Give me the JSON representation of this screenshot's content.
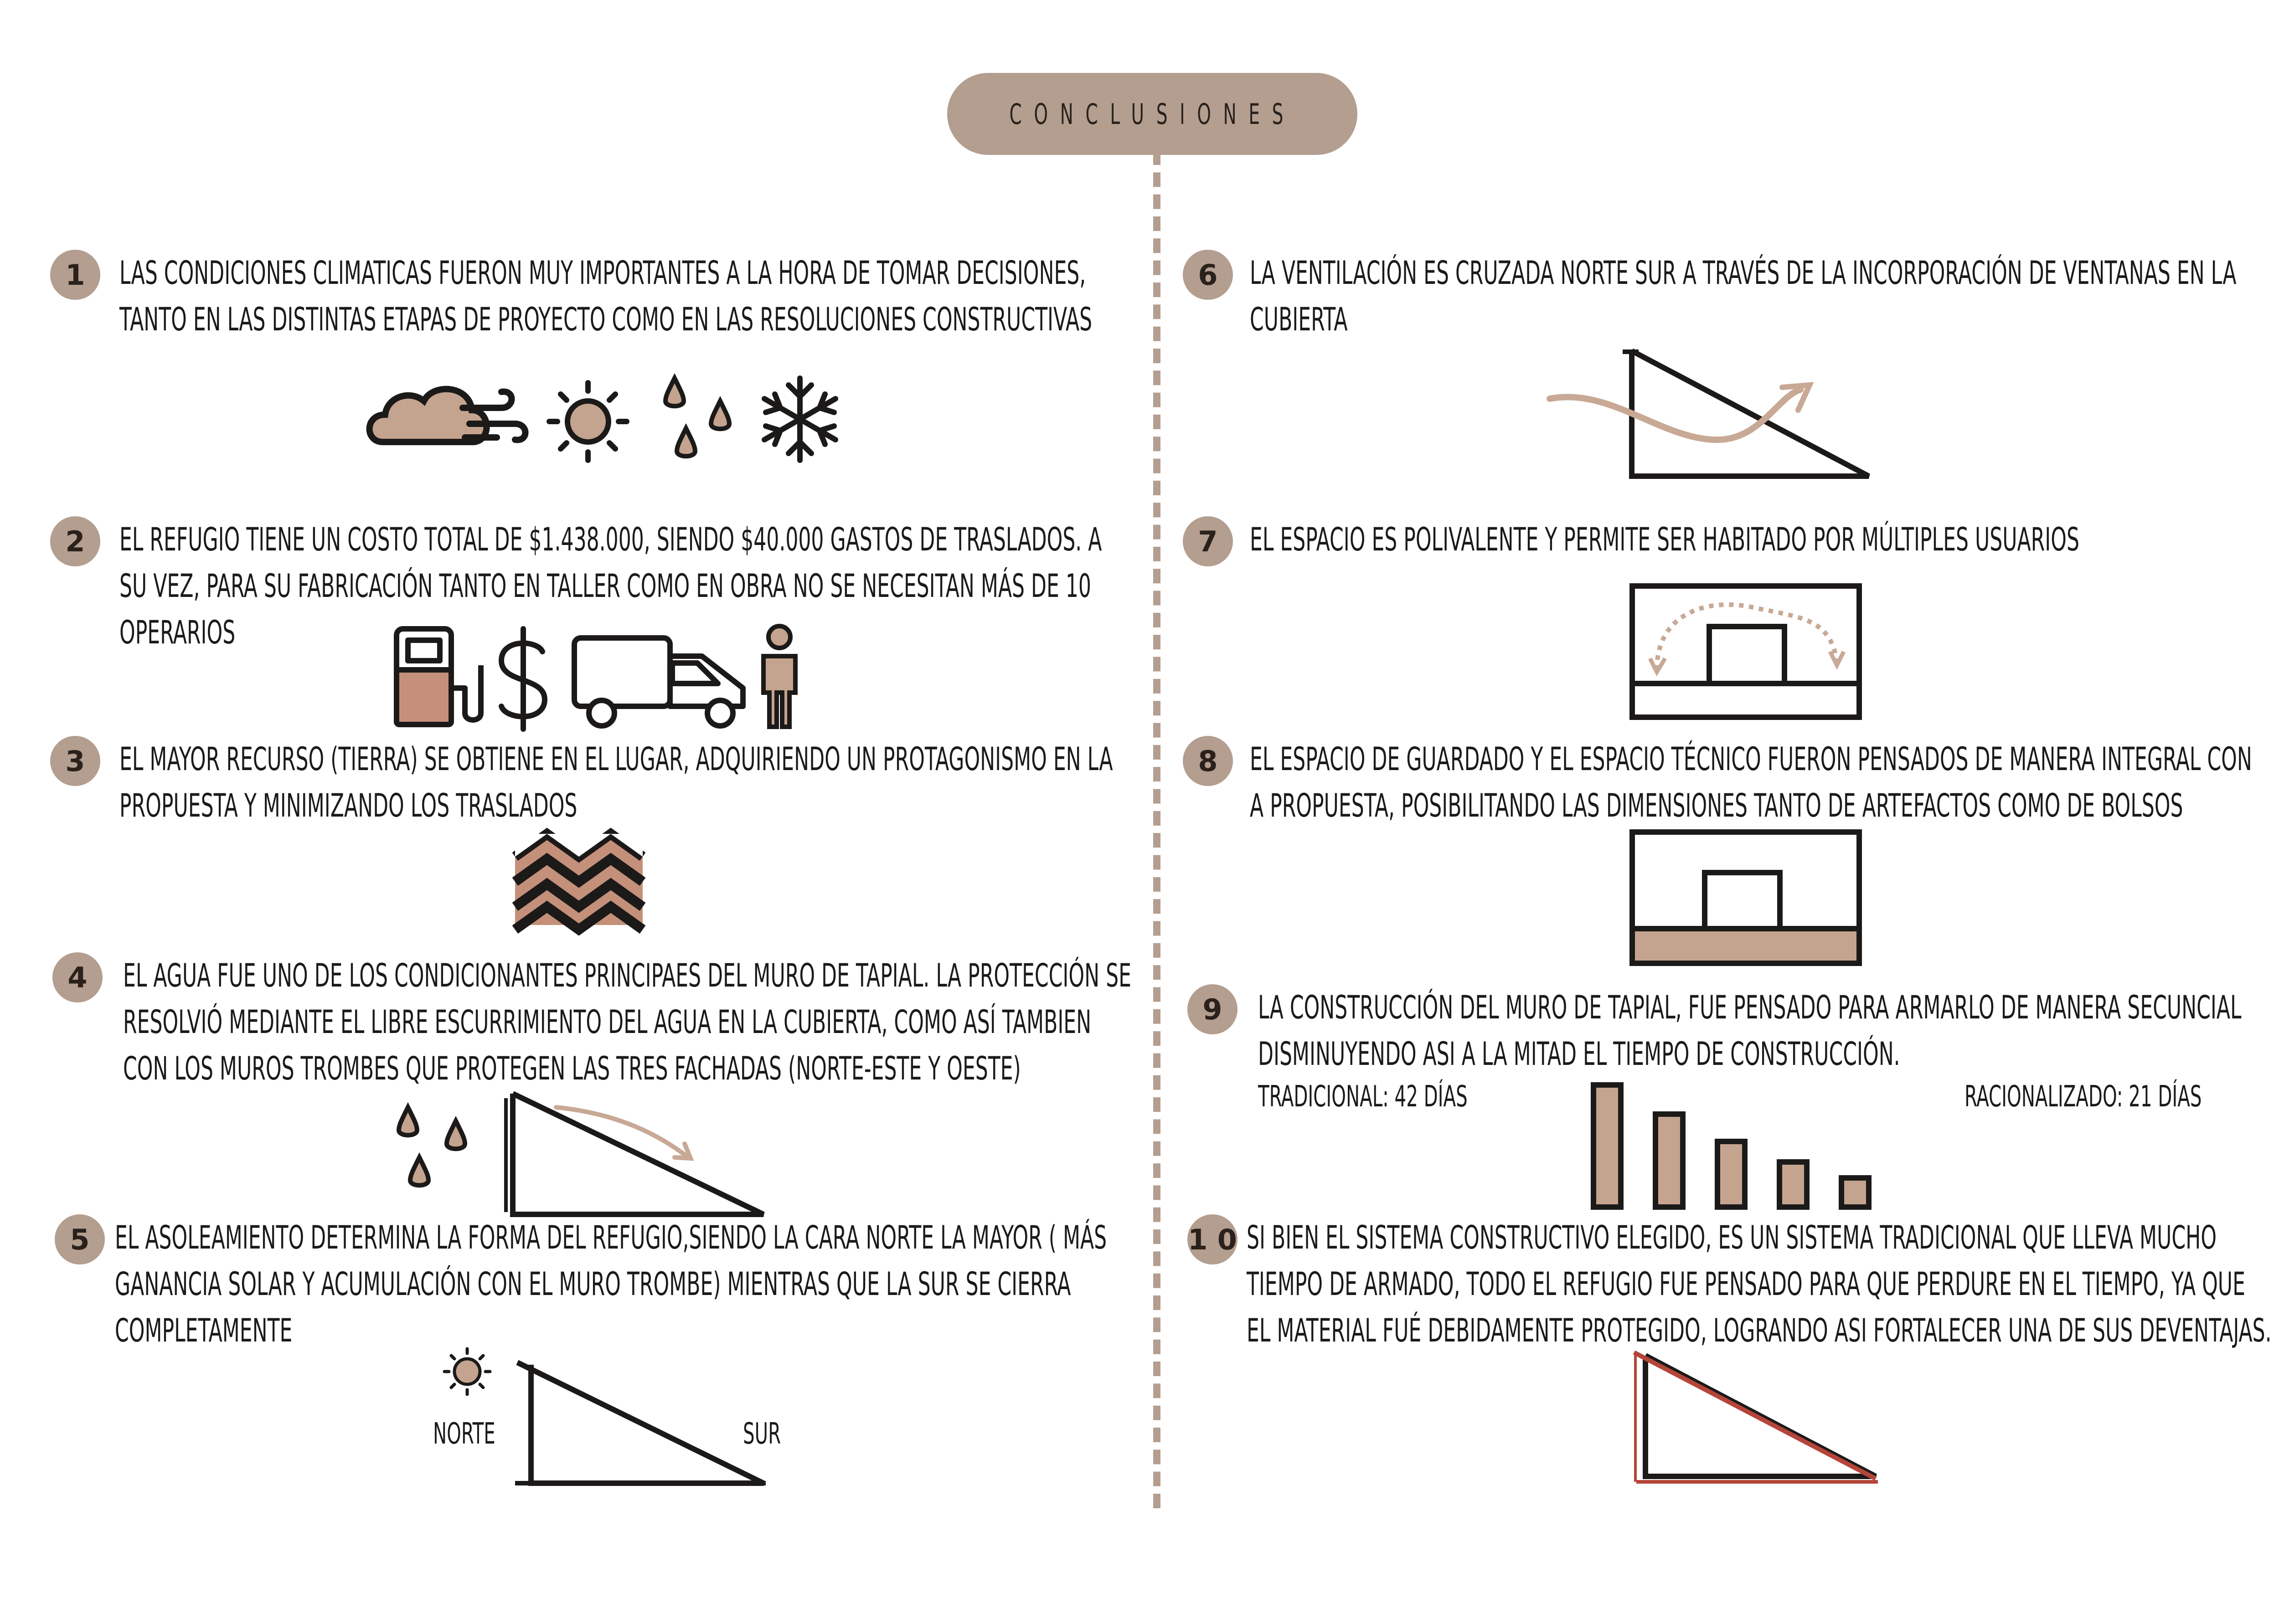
{
  "title": "CONCLUSIONES",
  "colors": {
    "accent": "#b39e8f",
    "ink": "#1c1a19",
    "arrow": "#c8a995",
    "red": "#b5453a"
  },
  "items": [
    {
      "number": "1",
      "lines": [
        "LAS CONDICIONES CLIMATICAS FUERON MUY IMPORTANTES A LA HORA DE TOMAR DECISIONES,",
        "TANTO EN LAS DISTINTAS ETAPAS DE PROYECTO COMO EN LAS RESOLUCIONES CONSTRUCTIVAS"
      ],
      "icons": [
        "wind-cloud-icon",
        "sun-icon",
        "drops-icon",
        "snowflake-icon"
      ]
    },
    {
      "number": "2",
      "lines": [
        "EL REFUGIO TIENE UN COSTO TOTAL DE $1.438.000, SIENDO $40.000 GASTOS DE TRASLADOS. A",
        "SU VEZ, PARA SU FABRICACIÓN TANTO EN TALLER COMO EN OBRA NO SE NECESITAN MÁS DE 10",
        "OPERARIOS"
      ],
      "icons": [
        "fuel-pump-icon",
        "dollar-icon",
        "truck-icon",
        "person-icon"
      ]
    },
    {
      "number": "3",
      "lines": [
        "EL MAYOR RECURSO (TIERRA) SE OBTIENE EN EL LUGAR, ADQUIRIENDO UN PROTAGONISMO EN LA",
        "PROPUESTA Y MINIMIZANDO LOS TRASLADOS"
      ],
      "icons": [
        "earth-layers-icon"
      ]
    },
    {
      "number": "4",
      "lines": [
        "EL AGUA FUE UNO DE LOS CONDICIONANTES PRINCIPAES DEL MURO DE TAPIAL. LA PROTECCIÓN SE",
        "RESOLVIÓ MEDIANTE EL LIBRE ESCURRIMIENTO DEL AGUA EN LA CUBIERTA, COMO ASÍ TAMBIEN",
        "CON LOS MUROS TROMBES QUE PROTEGEN LAS TRES FACHADAS (NORTE-ESTE Y OESTE)"
      ],
      "icons": [
        "rain-drops-icon",
        "roof-runoff-icon"
      ]
    },
    {
      "number": "5",
      "lines": [
        "EL ASOLEAMIENTO DETERMINA LA FORMA DEL REFUGIO,SIENDO LA CARA NORTE LA MAYOR ( MÁS",
        "GANANCIA SOLAR Y ACUMULACIÓN CON EL MURO TROMBE) MIENTRAS QUE LA SUR SE CIERRA",
        "COMPLETAMENTE"
      ],
      "labels": {
        "north": "NORTE",
        "south": "SUR"
      }
    },
    {
      "number": "6",
      "lines": [
        "LA VENTILACIÓN ES CRUZADA NORTE SUR A TRAVÉS DE LA INCORPORACIÓN DE VENTANAS EN LA",
        "CUBIERTA"
      ]
    },
    {
      "number": "7",
      "lines": [
        "EL ESPACIO ES POLIVALENTE Y PERMITE SER HABITADO POR MÚLTIPLES USUARIOS"
      ]
    },
    {
      "number": "8",
      "lines": [
        "EL ESPACIO DE GUARDADO Y EL ESPACIO TÉCNICO FUERON PENSADOS DE MANERA INTEGRAL CON",
        "A PROPUESTA, POSIBILITANDO LAS DIMENSIONES TANTO DE ARTEFACTOS COMO DE BOLSOS"
      ]
    },
    {
      "number": "9",
      "lines": [
        "LA CONSTRUCCIÓN DEL MURO DE TAPIAL, FUE PENSADO PARA ARMARLO DE MANERA SECUNCIAL",
        "DISMINUYENDO ASI A LA MITAD EL TIEMPO DE CONSTRUCCIÓN."
      ],
      "traditional": "TRADICIONAL: 42 DÍAS",
      "rationalized": "RACIONALIZADO: 21 DÍAS"
    },
    {
      "number": "1 0",
      "lines": [
        "SI BIEN EL SISTEMA CONSTRUCTIVO ELEGIDO, ES UN SISTEMA TRADICIONAL QUE LLEVA MUCHO",
        "TIEMPO DE ARMADO, TODO EL REFUGIO FUE PENSADO PARA QUE PERDURE EN EL TIEMPO, YA QUE",
        "EL MATERIAL FUÉ DEBIDAMENTE PROTEGIDO, LOGRANDO ASI FORTALECER UNA DE SUS DEVENTAJAS."
      ]
    }
  ]
}
